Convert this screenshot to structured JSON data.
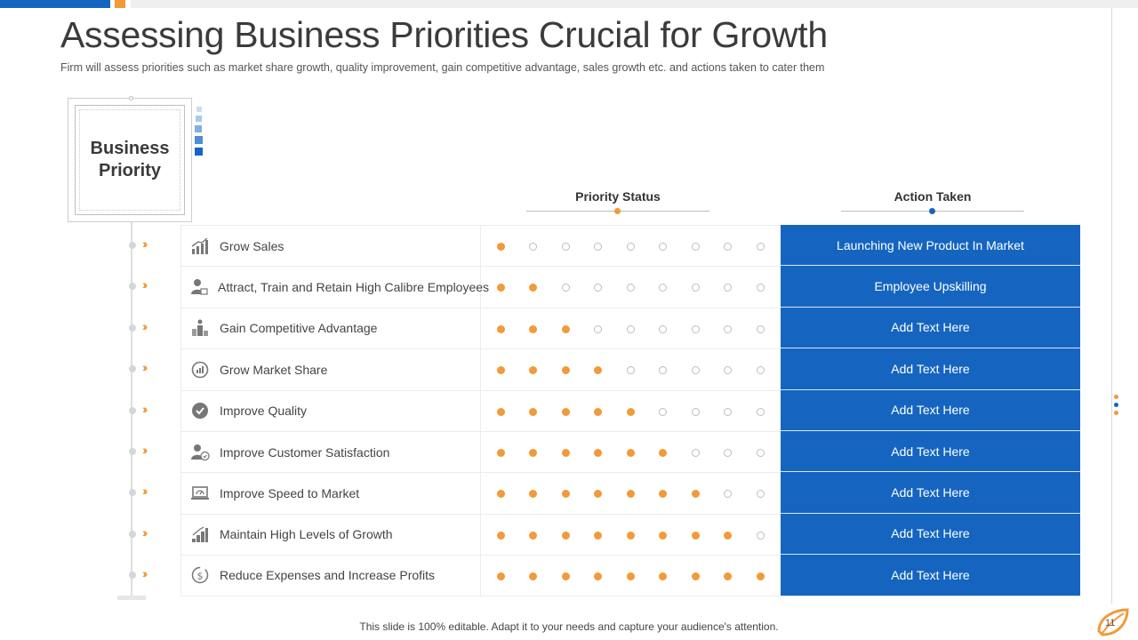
{
  "header": {
    "title": "Assessing Business Priorities Crucial for Growth",
    "subtitle": "Firm will assess priorities such as market share growth, quality improvement, gain competitive advantage, sales growth etc. and actions taken to cater them"
  },
  "panel": {
    "label": "Business Priority"
  },
  "columns": {
    "status": "Priority Status",
    "action": "Action Taken"
  },
  "colors": {
    "accent_blue": "#1565c0",
    "accent_orange": "#f29a38",
    "inactive_dot": "#bdbdbd"
  },
  "total_dots": 9,
  "rows": [
    {
      "icon": "bar-growth-icon",
      "label": "Grow Sales",
      "filled": 1,
      "action": "Launching New Product In Market"
    },
    {
      "icon": "employee-icon",
      "label": "Attract, Train and Retain High Calibre Employees",
      "filled": 2,
      "action": "Employee Upskilling"
    },
    {
      "icon": "podium-icon",
      "label": "Gain Competitive Advantage",
      "filled": 3,
      "action": "Add Text Here"
    },
    {
      "icon": "market-share-icon",
      "label": "Grow Market Share",
      "filled": 4,
      "action": "Add Text Here"
    },
    {
      "icon": "quality-badge-icon",
      "label": "Improve Quality",
      "filled": 5,
      "action": "Add Text Here"
    },
    {
      "icon": "customer-icon",
      "label": "Improve Customer Satisfaction",
      "filled": 6,
      "action": "Add Text Here"
    },
    {
      "icon": "laptop-speed-icon",
      "label": "Improve Speed to Market",
      "filled": 7,
      "action": "Add Text Here"
    },
    {
      "icon": "stairs-growth-icon",
      "label": "Maintain High Levels of Growth",
      "filled": 8,
      "action": "Add Text Here"
    },
    {
      "icon": "dollar-cycle-icon",
      "label": "Reduce Expenses and Increase Profits",
      "filled": 9,
      "action": "Add Text Here"
    }
  ],
  "footer": {
    "note": "This slide is 100% editable. Adapt it to your needs and capture your audience's attention.",
    "page": "11"
  }
}
